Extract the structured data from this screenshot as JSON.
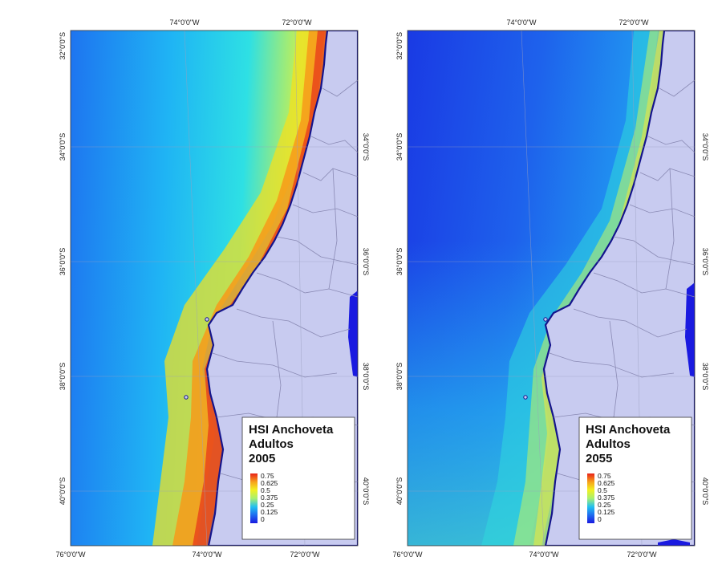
{
  "figure": {
    "panels": [
      {
        "id": "2005",
        "legend": {
          "title_line1": "HSI Anchoveta",
          "title_line2": "Adultos",
          "year": "2005"
        },
        "nearshore_peak": 0.75,
        "offshore_value": 0.28
      },
      {
        "id": "2055",
        "legend": {
          "title_line1": "HSI Anchoveta",
          "title_line2": "Adultos",
          "year": "2055"
        },
        "nearshore_peak": 0.5,
        "offshore_value": 0.12
      }
    ],
    "color_ramp": [
      "#1a1ae0",
      "#1e6ff0",
      "#22b8f2",
      "#30e0d8",
      "#a8f070",
      "#f2f020",
      "#f7a21a",
      "#e8231a"
    ],
    "land_color": "#c8cbf0",
    "coast_color": "#14148c",
    "legend_labels": [
      "0.75",
      "0.625",
      "0.5",
      "0.375",
      "0.25",
      "0.125",
      "0"
    ],
    "lon_labels_top": [
      "74°0'0\"W",
      "72°0'0\"W"
    ],
    "lon_labels_bottom": [
      "76°0'0\"W",
      "74°0'0\"W",
      "72°0'0\"W"
    ],
    "lat_labels": [
      "32°0'0\"S",
      "34°0'0\"S",
      "36°0'0\"S",
      "38°0'0\"S",
      "40°0'0\"S"
    ]
  }
}
